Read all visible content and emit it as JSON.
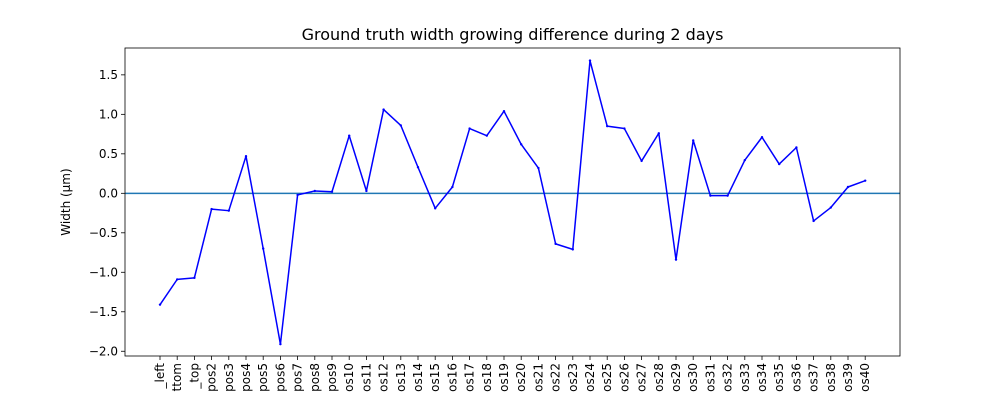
{
  "chart_data": {
    "type": "line",
    "title": "Ground truth width growing difference during 2 days",
    "xlabel": "",
    "ylabel": "Width (μm)",
    "ylim": [
      -2.06,
      1.84
    ],
    "yticks": [
      -2.0,
      -1.5,
      -1.0,
      -0.5,
      0.0,
      0.5,
      1.0,
      1.5
    ],
    "ytick_labels": [
      "−2.0",
      "−1.5",
      "−1.0",
      "−0.5",
      "0.0",
      "0.5",
      "1.0",
      "1.5"
    ],
    "categories": [
      "_left",
      "ttom",
      "_top",
      "pos2",
      "pos3",
      "pos4",
      "pos5",
      "pos6",
      "pos7",
      "pos8",
      "pos9",
      "os10",
      "os11",
      "os12",
      "os13",
      "os14",
      "os15",
      "os16",
      "os17",
      "os18",
      "os19",
      "os20",
      "os21",
      "os22",
      "os23",
      "os24",
      "os25",
      "os26",
      "os27",
      "os28",
      "os29",
      "os30",
      "os31",
      "os32",
      "os33",
      "os34",
      "os35",
      "os36",
      "os37",
      "os38",
      "os39",
      "os40"
    ],
    "series": [
      {
        "color": "#0000ff",
        "values": [
          -1.41,
          -1.09,
          -1.07,
          -0.2,
          -0.22,
          0.47,
          -0.7,
          -1.91,
          -0.02,
          0.03,
          0.02,
          0.73,
          0.03,
          1.06,
          0.86,
          0.33,
          -0.19,
          0.08,
          0.82,
          0.73,
          1.04,
          0.62,
          0.32,
          -0.64,
          -0.71,
          1.68,
          0.85,
          0.82,
          0.41,
          0.76,
          -0.84,
          0.67,
          -0.03,
          -0.03,
          0.42,
          0.71,
          0.37,
          0.58,
          -0.35,
          -0.18,
          0.08,
          0.16
        ]
      }
    ],
    "reference_line": {
      "y": 0.0,
      "color": "#1f77b4"
    },
    "grid": false,
    "legend": "none"
  }
}
